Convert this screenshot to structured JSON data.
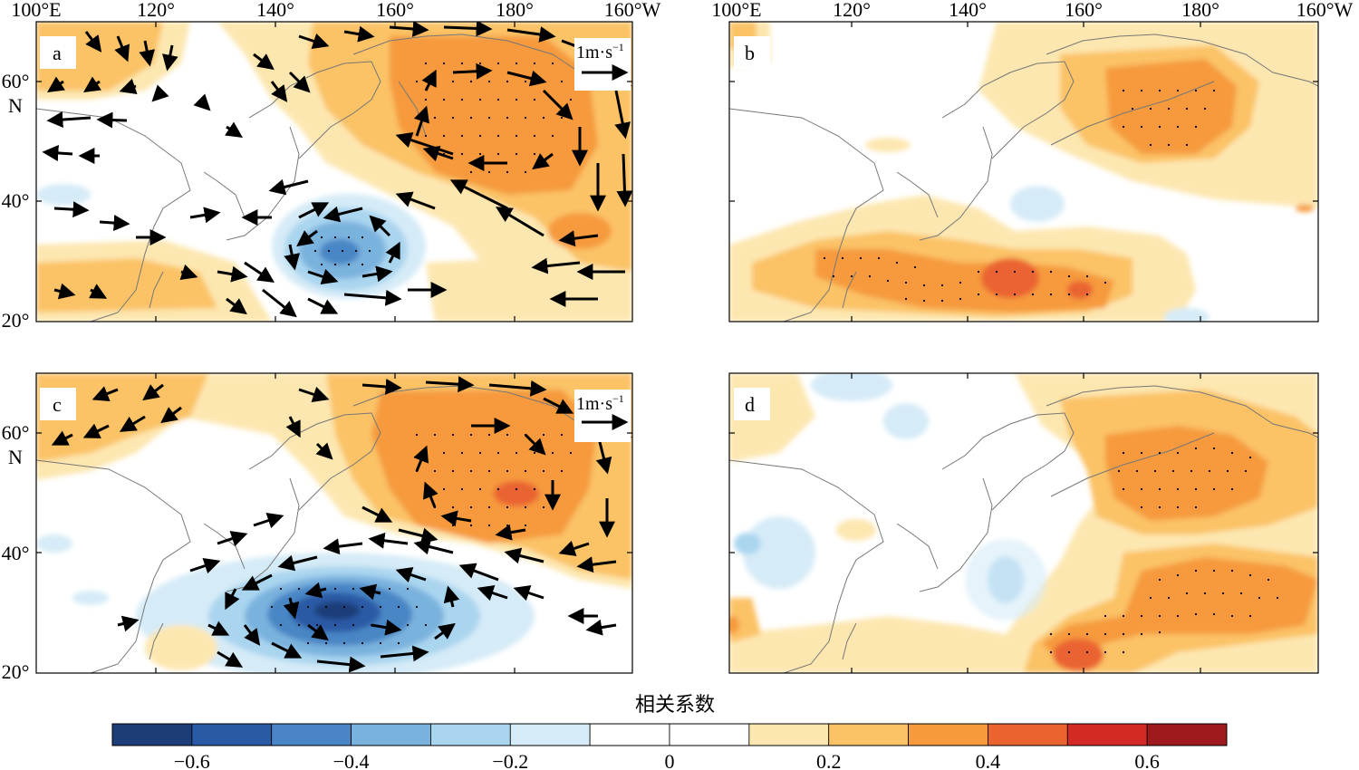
{
  "figure": {
    "lon_labels": [
      "100°E",
      "120°",
      "140°",
      "160°",
      "180°",
      "160°W"
    ],
    "lat_labels": [
      "60°",
      "40°",
      "20°"
    ],
    "lat_unit": "N",
    "reference_vector": "1m·s",
    "reference_vector_exp": "−1"
  },
  "panels": [
    {
      "id": "a",
      "letter": "a",
      "vectors": true
    },
    {
      "id": "b",
      "letter": "b",
      "vectors": false
    },
    {
      "id": "c",
      "letter": "c",
      "vectors": true
    },
    {
      "id": "d",
      "letter": "d",
      "vectors": false
    }
  ],
  "colorbar": {
    "title": "相关系数",
    "tick_labels": [
      "−0.6",
      "−0.4",
      "−0.2",
      "0",
      "0.2",
      "0.4",
      "0.6"
    ],
    "tick_values": [
      -0.6,
      -0.4,
      -0.2,
      0,
      0.2,
      0.4,
      0.6
    ],
    "boundaries": [
      -0.7,
      -0.6,
      -0.5,
      -0.4,
      -0.3,
      -0.2,
      -0.1,
      0,
      0.1,
      0.2,
      0.3,
      0.4,
      0.5,
      0.6,
      0.7
    ],
    "colors": [
      "#1d3d78",
      "#2a5aa6",
      "#4a86c5",
      "#7ab2de",
      "#aad5ef",
      "#d5ebf7",
      "#ffffff",
      "#ffffff",
      "#fde7b0",
      "#fbc266",
      "#f69a3c",
      "#ea6430",
      "#d42a26",
      "#9e1a1c"
    ]
  }
}
